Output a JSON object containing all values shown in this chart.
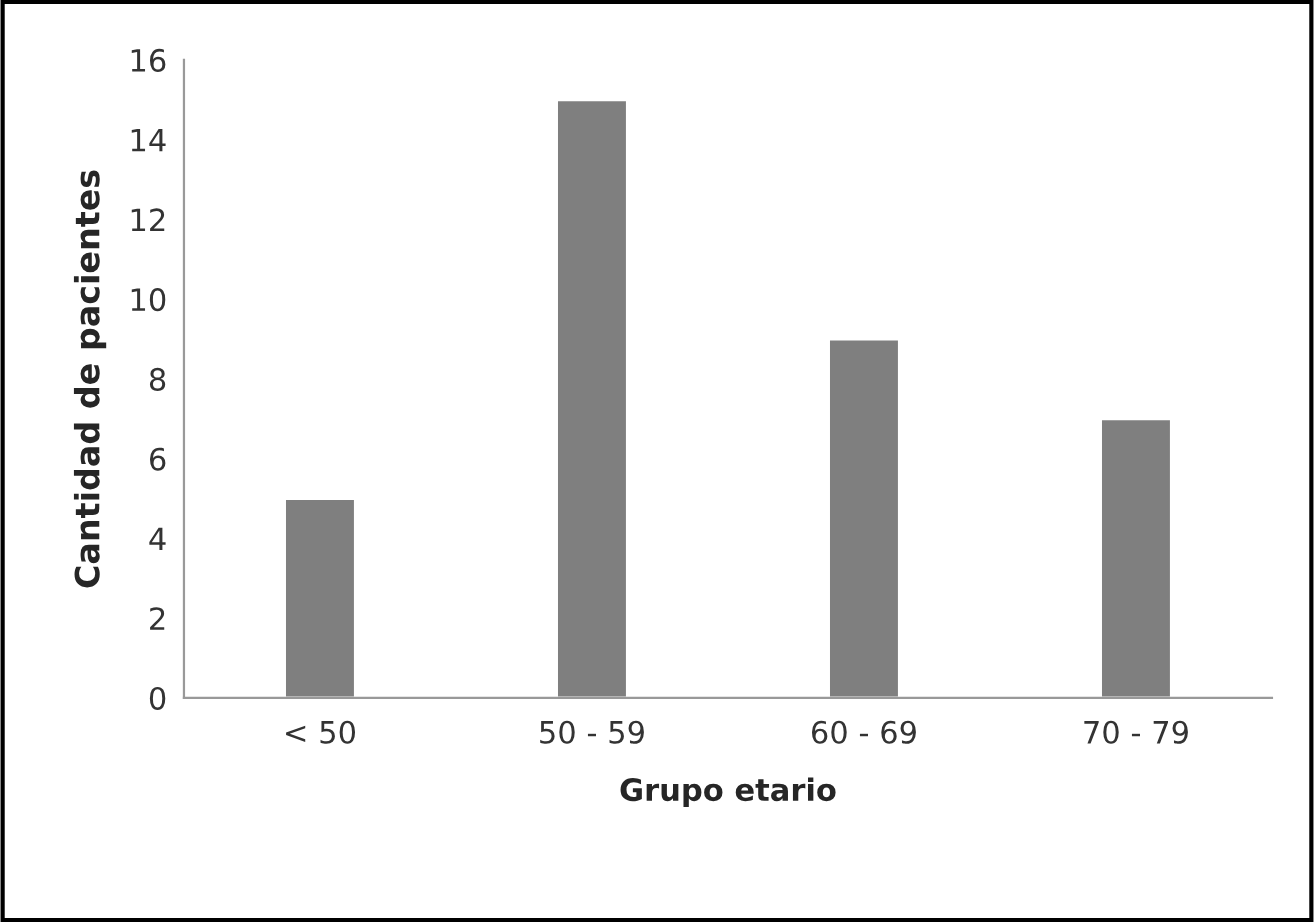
{
  "chart_data": {
    "type": "bar",
    "xlabel": "Grupo etario",
    "ylabel": "Cantidad de pacientes",
    "categories": [
      "< 50",
      "50 - 59",
      "60 - 69",
      "70 - 79"
    ],
    "values": [
      5,
      15,
      9,
      7
    ],
    "color": "#7f7f7f",
    "ylim": [
      0,
      16
    ],
    "yticks": [
      0,
      2,
      4,
      6,
      8,
      10,
      12,
      14,
      16
    ],
    "grid": false,
    "legend": false
  }
}
